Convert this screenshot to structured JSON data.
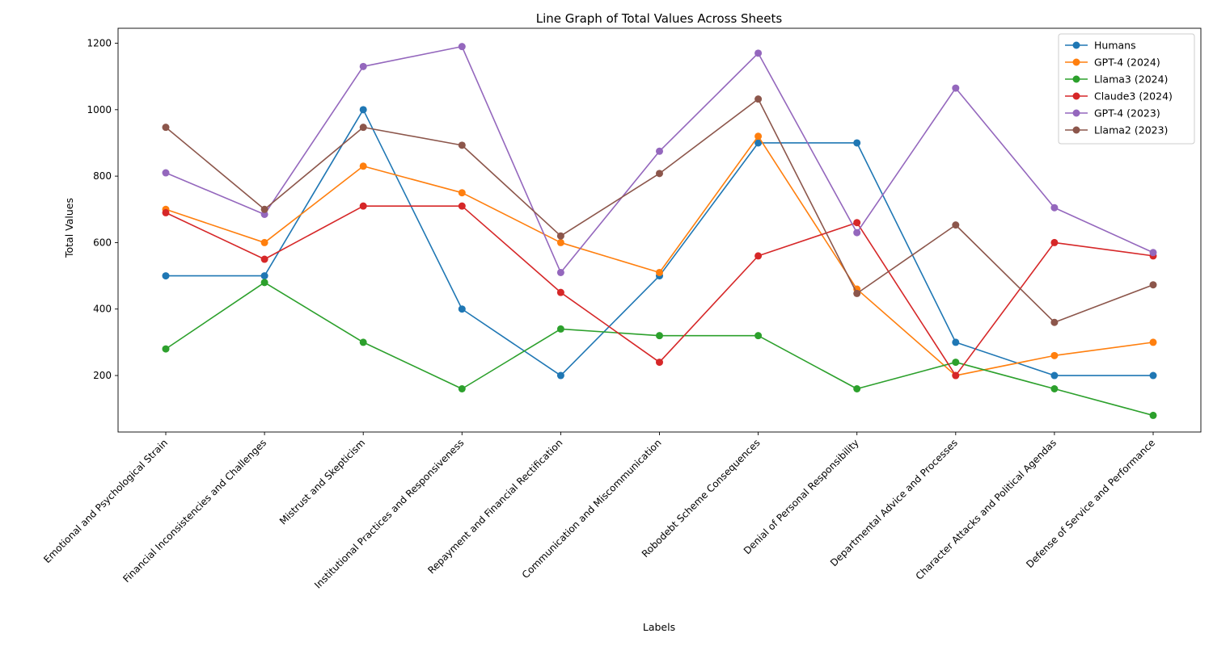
{
  "chart_data": {
    "type": "line",
    "title": "Line Graph of Total Values Across Sheets",
    "xlabel": "Labels",
    "ylabel": "Total Values",
    "ylim": [
      30,
      1245
    ],
    "yticks": [
      200,
      400,
      600,
      800,
      1000,
      1200
    ],
    "grid": false,
    "legend_position": "top-right",
    "categories": [
      "Emotional and Psychological Strain",
      "Financial Inconsistencies and Challenges",
      "Mistrust and Skepticism",
      "Institutional Practices and Responsiveness",
      "Repayment and Financial Rectification",
      "Communication and Miscommunication",
      "Robodebt Scheme Consequences",
      "Denial of Personal Responsibility",
      "Departmental Advice and Processes",
      "Character Attacks and Political Agendas",
      "Defense of Service and Performance"
    ],
    "series": [
      {
        "name": "Humans",
        "color": "#1f77b4",
        "values": [
          500,
          500,
          1000,
          400,
          200,
          500,
          900,
          900,
          300,
          200,
          200
        ]
      },
      {
        "name": "GPT-4 (2024)",
        "color": "#ff7f0e",
        "values": [
          700,
          600,
          830,
          750,
          600,
          510,
          920,
          460,
          200,
          260,
          300
        ]
      },
      {
        "name": "Llama3 (2024)",
        "color": "#2ca02c",
        "values": [
          280,
          480,
          300,
          160,
          340,
          320,
          320,
          160,
          240,
          160,
          80
        ]
      },
      {
        "name": "Claude3 (2024)",
        "color": "#d62728",
        "values": [
          690,
          550,
          710,
          710,
          450,
          240,
          560,
          660,
          200,
          600,
          560
        ]
      },
      {
        "name": "GPT-4 (2023)",
        "color": "#9467bd",
        "values": [
          810,
          685,
          1130,
          1190,
          510,
          875,
          1170,
          630,
          1065,
          705,
          570
        ]
      },
      {
        "name": "Llama2 (2023)",
        "color": "#8c564b",
        "values": [
          947,
          700,
          947,
          893,
          620,
          808,
          1032,
          447,
          653,
          360,
          473
        ]
      }
    ]
  }
}
